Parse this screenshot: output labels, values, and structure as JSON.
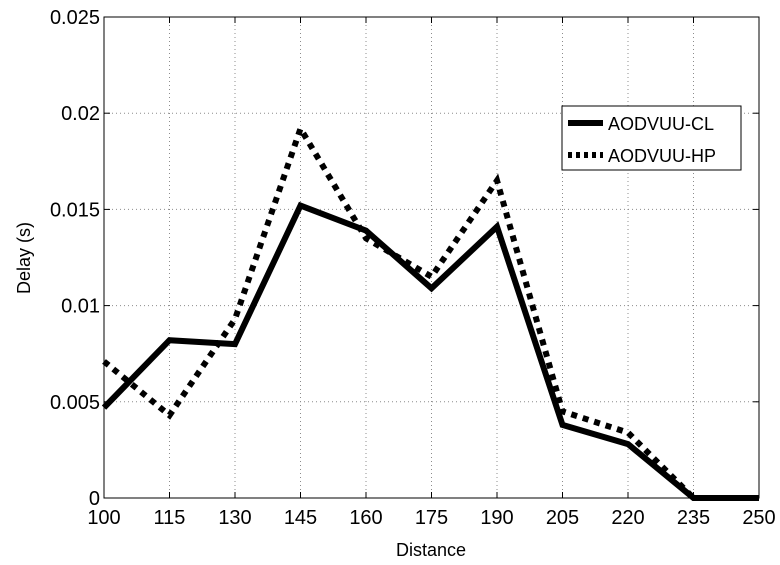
{
  "chart_data": {
    "type": "line",
    "title": "",
    "xlabel": "Distance",
    "ylabel": "Delay (s)",
    "x": [
      100,
      115,
      130,
      145,
      160,
      175,
      190,
      205,
      220,
      235,
      250
    ],
    "x_tick_labels": [
      "100",
      "115",
      "130",
      "145",
      "160",
      "175",
      "190",
      "205",
      "220",
      "235",
      "250"
    ],
    "xlim": [
      100,
      250
    ],
    "ylim": [
      0,
      0.025
    ],
    "y_ticks": [
      0,
      0.005,
      0.01,
      0.015,
      0.02,
      0.025
    ],
    "y_tick_labels": [
      "0",
      "0.005",
      "0.01",
      "0.015",
      "0.02",
      "0.025"
    ],
    "grid": true,
    "legend_position": "upper-right",
    "series": [
      {
        "name": "AODVUU-CL",
        "style": "solid",
        "color": "#000000",
        "values": [
          0.0047,
          0.0082,
          0.008,
          0.0152,
          0.0139,
          0.0109,
          0.0141,
          0.0038,
          0.0028,
          0.0,
          0.0
        ]
      },
      {
        "name": "AODVUU-HP",
        "style": "dotted",
        "color": "#000000",
        "values": [
          0.0071,
          0.0043,
          0.0093,
          0.0192,
          0.0135,
          0.0115,
          0.0165,
          0.0045,
          0.0034,
          0.0,
          0.0
        ]
      }
    ]
  }
}
